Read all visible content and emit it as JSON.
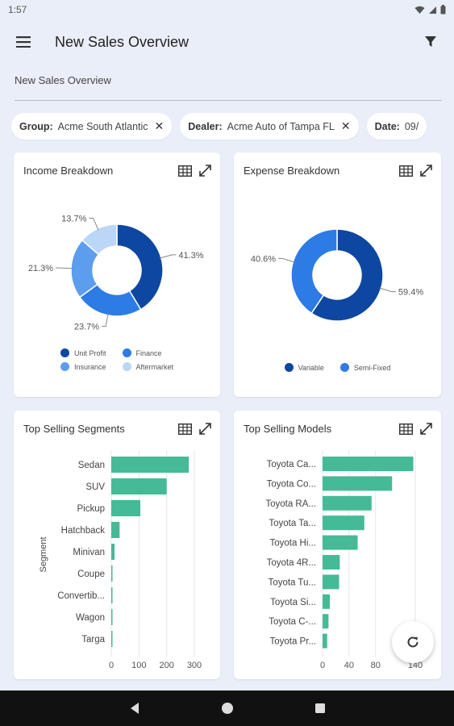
{
  "status": {
    "time": "1:57"
  },
  "appbar": {
    "title": "New Sales Overview"
  },
  "page": {
    "subtitle": "New Sales Overview"
  },
  "filters": [
    {
      "key": "Group:",
      "value": "Acme South Atlantic"
    },
    {
      "key": "Dealer:",
      "value": "Acme Auto of Tampa FL"
    },
    {
      "key": "Date:",
      "value": "09/"
    }
  ],
  "cards": {
    "income": {
      "title": "Income Breakdown"
    },
    "expense": {
      "title": "Expense Breakdown"
    },
    "segments": {
      "title": "Top Selling Segments"
    },
    "models": {
      "title": "Top Selling Models"
    }
  },
  "colors": {
    "dark_blue": "#0d47a1",
    "blue": "#2d7be5",
    "mid_blue": "#5c9ded",
    "light_blue": "#bcd6f8",
    "teal": "#45ba96",
    "card_bg": "#ffffff",
    "page_bg": "#e9eef8"
  },
  "icons": {
    "menu": "hamburger-menu-icon",
    "filter": "filter-icon",
    "table": "table-icon",
    "expand": "expand-icon",
    "refresh": "refresh-icon"
  },
  "chart_data": [
    {
      "type": "pie",
      "title": "Income Breakdown",
      "categories": [
        "Unit Profit",
        "Finance",
        "Insurance",
        "Aftermarket"
      ],
      "values": [
        41.3,
        23.7,
        21.3,
        13.7
      ],
      "labels": [
        "41.3%",
        "23.7%",
        "21.3%",
        "13.7%"
      ],
      "legend_position": "bottom",
      "colors": [
        "#0d47a1",
        "#2d7be5",
        "#5c9ded",
        "#bcd6f8"
      ]
    },
    {
      "type": "pie",
      "title": "Expense Breakdown",
      "categories": [
        "Variable",
        "Semi-Fixed"
      ],
      "values": [
        59.4,
        40.6
      ],
      "labels": [
        "59.4%",
        "40.6%"
      ],
      "legend_position": "bottom",
      "colors": [
        "#0d47a1",
        "#2d7be5"
      ]
    },
    {
      "type": "bar",
      "orientation": "horizontal",
      "title": "Top Selling Segments",
      "ylabel": "Segment",
      "categories": [
        "Sedan",
        "SUV",
        "Pickup",
        "Hatchback",
        "Minivan",
        "Coupe",
        "Convertib...",
        "Wagon",
        "Targa"
      ],
      "values": [
        280,
        200,
        105,
        30,
        12,
        4,
        4,
        4,
        3
      ],
      "xlim": [
        0,
        300
      ],
      "xticks": [
        "0",
        "100",
        "200",
        "300"
      ],
      "grid": true
    },
    {
      "type": "bar",
      "orientation": "horizontal",
      "title": "Top Selling Models",
      "categories": [
        "Toyota Ca...",
        "Toyota Co...",
        "Toyota RA...",
        "Toyota Ta...",
        "Toyota Hi...",
        "Toyota 4R...",
        "Toyota Tu...",
        "Toyota Si...",
        "Toyota C-...",
        "Toyota Pr..."
      ],
      "values": [
        137,
        105,
        74,
        63,
        53,
        26,
        25,
        11,
        9,
        7
      ],
      "xlim": [
        0,
        140
      ],
      "xticks": [
        "0",
        "40",
        "80",
        "140"
      ],
      "grid": true
    }
  ]
}
